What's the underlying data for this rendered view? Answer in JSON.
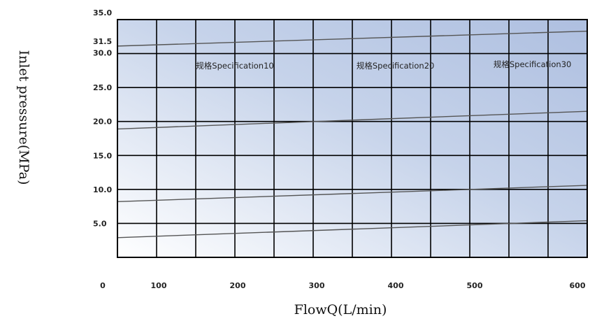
{
  "chart_data": {
    "type": "line",
    "xlabel": "FlowQ(L/min)",
    "ylabel": "Inlet pressure(MPa)",
    "xlim": [
      0,
      600
    ],
    "ylim": [
      0,
      35
    ],
    "x_ticks": [
      "0",
      "100",
      "200",
      "300",
      "400",
      "500",
      "600"
    ],
    "y_ticks": [
      "5.0",
      "10.0",
      "15.0",
      "20.0",
      "25.0",
      "30.0",
      "31.5",
      "35.0"
    ],
    "y_tick_values": [
      5,
      10,
      15,
      20,
      25,
      30,
      31.5,
      35
    ],
    "grid": true,
    "legend": "none",
    "series": [
      {
        "x": [
          0,
          600
        ],
        "y": [
          31.1,
          33.3
        ]
      },
      {
        "x": [
          0,
          600
        ],
        "y": [
          18.9,
          21.5
        ]
      },
      {
        "x": [
          0,
          600
        ],
        "y": [
          8.2,
          10.6
        ]
      },
      {
        "x": [
          0,
          600
        ],
        "y": [
          2.9,
          5.4
        ]
      }
    ],
    "annotations": [
      {
        "text": "规格Specification10",
        "x": 150,
        "y": 27.8
      },
      {
        "text": "规格Specification20",
        "x": 355,
        "y": 27.8
      },
      {
        "text": "规格Specification30",
        "x": 530,
        "y": 28.0
      }
    ]
  }
}
